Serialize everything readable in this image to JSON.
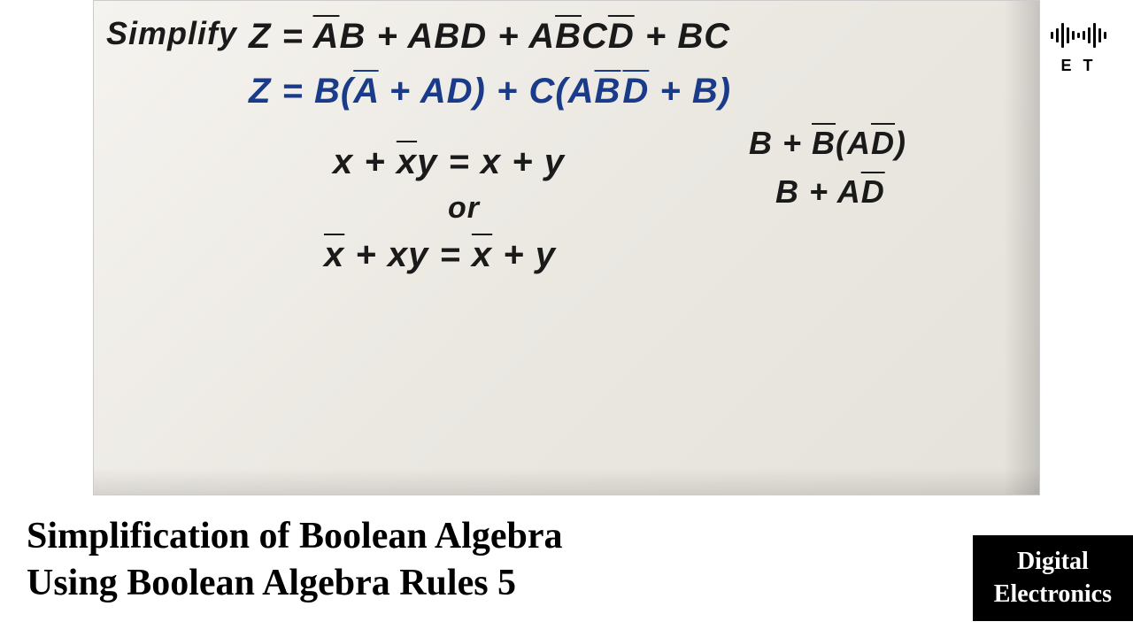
{
  "whiteboard": {
    "background_gradient": [
      "#f5f3ef",
      "#ebe8e2",
      "#e5e2db"
    ],
    "simplify_label": "Simplify",
    "line1": {
      "z": "Z =",
      "t1a": "A",
      "t1b": "B + ABD + A",
      "t2a": "B",
      "t2b": "C",
      "t2c": "D",
      "t2d": " + BC"
    },
    "line2": {
      "z": "Z =",
      "p1a": "B(",
      "p1b": "A",
      "p1c": " + AD) + C(A",
      "p2a": "B",
      "p2b": "D",
      "p2c": " + B)"
    },
    "rule1": {
      "lhs_a": "x + ",
      "lhs_b": "x",
      "lhs_c": "y = x + y"
    },
    "or_text": "or",
    "rule2": {
      "lhs_a": "x",
      "lhs_b": " + xy = ",
      "lhs_c": "x",
      "lhs_d": " + y"
    },
    "side1": {
      "a": "B + ",
      "b": "B",
      "c": "(A",
      "d": "D",
      "e": ")"
    },
    "side2": {
      "a": "B + A",
      "b": "D"
    }
  },
  "logo": {
    "bars": [
      8,
      16,
      28,
      18,
      10,
      6,
      10,
      18,
      28,
      16,
      8
    ],
    "text": "E T",
    "bar_color": "#000000"
  },
  "title": {
    "line1": "Simplification of Boolean Algebra",
    "line2": "Using Boolean Algebra Rules 5",
    "fontsize": 42,
    "color": "#000000"
  },
  "badge": {
    "line1": "Digital",
    "line2": "Electronics",
    "background": "#000000",
    "color": "#ffffff",
    "fontsize": 28
  }
}
